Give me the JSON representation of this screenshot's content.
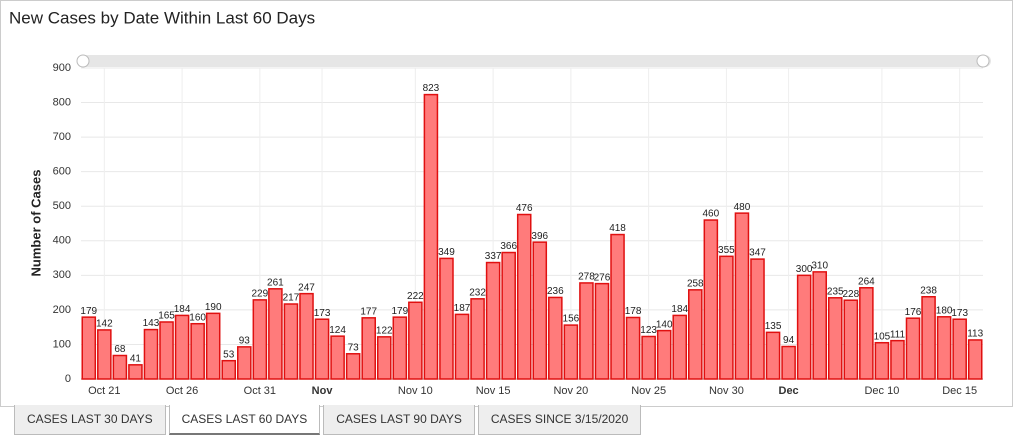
{
  "chart_data": {
    "type": "bar",
    "title": "New Cases by Date Within Last 60 Days",
    "ylabel": "Number of Cases",
    "categories": [
      null,
      "Oct 21",
      null,
      null,
      null,
      null,
      "Oct 26",
      null,
      null,
      null,
      null,
      "Oct 31",
      null,
      null,
      null,
      "Nov",
      null,
      null,
      null,
      null,
      null,
      "Nov 10",
      null,
      null,
      null,
      null,
      "Nov 15",
      null,
      null,
      null,
      null,
      "Nov 20",
      null,
      null,
      null,
      null,
      "Nov 25",
      null,
      null,
      null,
      null,
      "Nov 30",
      null,
      null,
      null,
      "Dec",
      null,
      null,
      null,
      null,
      null,
      "Dec 10",
      null,
      null,
      null,
      null,
      "Dec 15",
      null
    ],
    "values": [
      179,
      142,
      68,
      41,
      143,
      165,
      184,
      160,
      190,
      53,
      93,
      229,
      261,
      217,
      247,
      173,
      124,
      73,
      177,
      122,
      179,
      222,
      823,
      349,
      187,
      232,
      337,
      366,
      476,
      396,
      236,
      156,
      278,
      276,
      418,
      178,
      123,
      140,
      184,
      258,
      460,
      355,
      480,
      347,
      135,
      94,
      300,
      310,
      235,
      228,
      264,
      105,
      111,
      176,
      238,
      180,
      173,
      113
    ],
    "color": "#ff7b7b",
    "edge_color": "#e01010",
    "ylim": [
      0,
      900
    ],
    "yticks": [
      0,
      100,
      200,
      300,
      400,
      500,
      600,
      700,
      800,
      900
    ],
    "grid": true,
    "value_labels_shown": true
  },
  "tabs": [
    "CASES LAST 30 DAYS",
    "CASES LAST 60 DAYS",
    "CASES LAST 90 DAYS",
    "CASES SINCE 3/15/2020"
  ],
  "active_tab": 1
}
